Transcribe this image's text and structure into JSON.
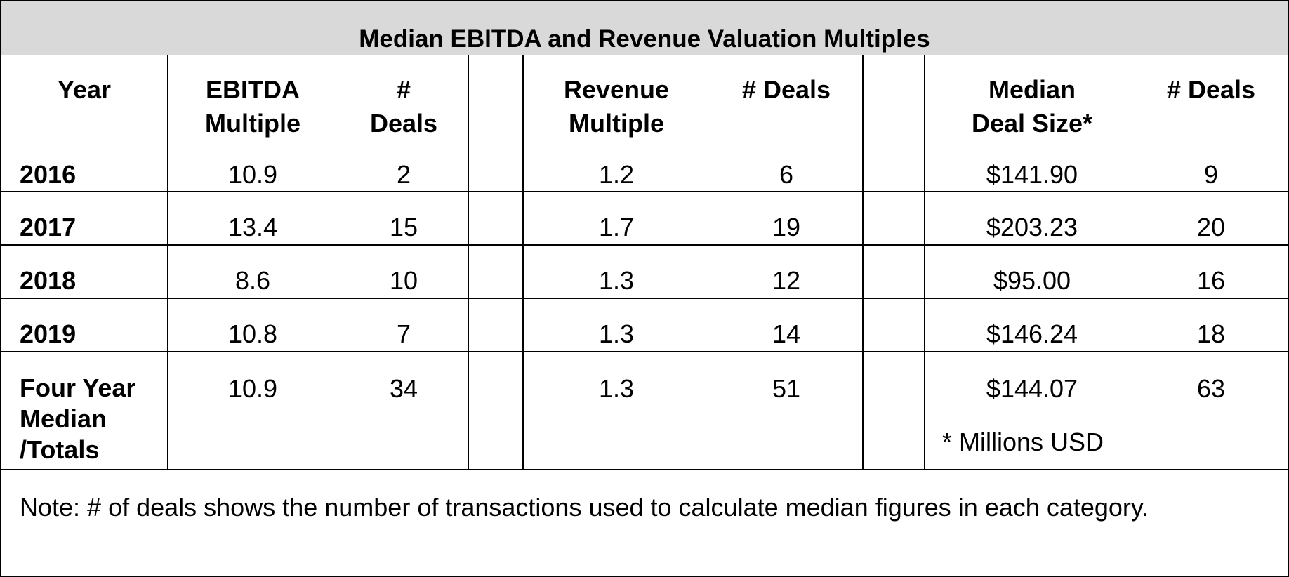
{
  "title": "Median EBITDA and Revenue Valuation Multiples",
  "headers": {
    "year": "Year",
    "ebitda_multiple_1": "EBITDA",
    "ebitda_multiple_2": "Multiple",
    "ebitda_deals_1": "#",
    "ebitda_deals_2": "Deals",
    "revenue_multiple_1": "Revenue",
    "revenue_multiple_2": "Multiple",
    "revenue_deals": "# Deals",
    "deal_size_1": "Median",
    "deal_size_2": "Deal Size*",
    "size_deals": "#  Deals"
  },
  "rows": [
    {
      "year": "2016",
      "ebitda": "10.9",
      "ebitda_deals": "2",
      "revenue": "1.2",
      "revenue_deals": "6",
      "deal_size": "$141.90",
      "size_deals": "9"
    },
    {
      "year": "2017",
      "ebitda": "13.4",
      "ebitda_deals": "15",
      "revenue": "1.7",
      "revenue_deals": "19",
      "deal_size": "$203.23",
      "size_deals": "20"
    },
    {
      "year": "2018",
      "ebitda": "8.6",
      "ebitda_deals": "10",
      "revenue": "1.3",
      "revenue_deals": "12",
      "deal_size": "$95.00",
      "size_deals": "16"
    },
    {
      "year": "2019",
      "ebitda": "10.8",
      "ebitda_deals": "7",
      "revenue": "1.3",
      "revenue_deals": "14",
      "deal_size": "$146.24",
      "size_deals": "18"
    }
  ],
  "totals": {
    "label_1": "Four Year",
    "label_2": "Median",
    "label_3": "/Totals",
    "ebitda": "10.9",
    "ebitda_deals": "34",
    "revenue": "1.3",
    "revenue_deals": "51",
    "deal_size": "$144.07",
    "size_deals": "63"
  },
  "footnote": "* Millions USD",
  "note": "Note: # of deals shows the number of transactions used to calculate median figures in each category."
}
